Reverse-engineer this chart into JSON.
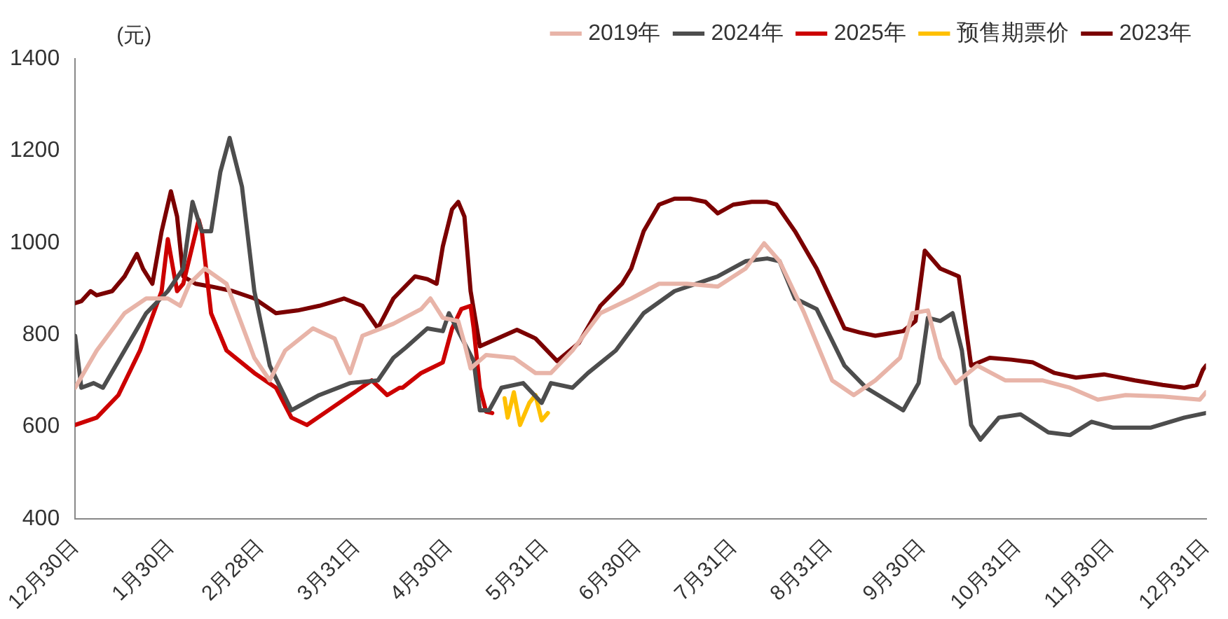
{
  "chart_data": {
    "type": "line",
    "ylabel": "(元)",
    "xlim": [
      "2024-12-30",
      "2025-12-31"
    ],
    "ylim": [
      400,
      1400
    ],
    "yticks": [
      400,
      600,
      800,
      1000,
      1200,
      1400
    ],
    "xticks": [
      {
        "value": "2024-12-30",
        "label": "12月30日"
      },
      {
        "value": "2025-01-30",
        "label": "1月30日"
      },
      {
        "value": "2025-02-28",
        "label": "2月28日"
      },
      {
        "value": "2025-03-31",
        "label": "3月31日"
      },
      {
        "value": "2025-04-30",
        "label": "4月30日"
      },
      {
        "value": "2025-05-31",
        "label": "5月31日"
      },
      {
        "value": "2025-06-30",
        "label": "6月30日"
      },
      {
        "value": "2025-07-31",
        "label": "7月31日"
      },
      {
        "value": "2025-08-31",
        "label": "8月31日"
      },
      {
        "value": "2025-09-30",
        "label": "9月30日"
      },
      {
        "value": "2025-10-31",
        "label": "10月31日"
      },
      {
        "value": "2025-11-30",
        "label": "11月30日"
      },
      {
        "value": "2025-12-31",
        "label": "12月31日"
      }
    ],
    "grid": false,
    "legend": "top",
    "marker": "none",
    "line_style": "solid",
    "series": [
      {
        "name": "2019年",
        "color": "#e8b4a8",
        "x": [
          "2024-12-30",
          "2025-01-06",
          "2025-01-15",
          "2025-01-22",
          "2025-01-29",
          "2025-02-02",
          "2025-02-05",
          "2025-02-10",
          "2025-02-17",
          "2025-02-26",
          "2025-03-03",
          "2025-03-08",
          "2025-03-17",
          "2025-03-24",
          "2025-03-29",
          "2025-04-02",
          "2025-04-12",
          "2025-04-21",
          "2025-04-24",
          "2025-04-28",
          "2025-05-03",
          "2025-05-05",
          "2025-05-07",
          "2025-05-12",
          "2025-05-21",
          "2025-05-28",
          "2025-06-02",
          "2025-06-09",
          "2025-06-18",
          "2025-06-28",
          "2025-07-07",
          "2025-07-16",
          "2025-07-26",
          "2025-08-04",
          "2025-08-10",
          "2025-08-15",
          "2025-08-23",
          "2025-09-01",
          "2025-09-08",
          "2025-09-15",
          "2025-09-23",
          "2025-09-27",
          "2025-10-02",
          "2025-10-06",
          "2025-10-11",
          "2025-10-18",
          "2025-10-27",
          "2025-11-08",
          "2025-11-17",
          "2025-11-26",
          "2025-12-05",
          "2025-12-17",
          "2025-12-29",
          "2025-12-31"
        ],
        "values": [
          685,
          766,
          847,
          879,
          879,
          863,
          911,
          944,
          911,
          750,
          701,
          766,
          814,
          792,
          717,
          798,
          824,
          856,
          879,
          837,
          830,
          782,
          727,
          756,
          750,
          717,
          717,
          766,
          847,
          879,
          911,
          911,
          905,
          944,
          999,
          960,
          847,
          701,
          669,
          701,
          750,
          847,
          853,
          750,
          695,
          733,
          701,
          701,
          685,
          659,
          669,
          666,
          659,
          675
        ]
      },
      {
        "name": "2024年",
        "color": "#4d4d4d",
        "x": [
          "2024-12-30",
          "2025-01-01",
          "2025-01-05",
          "2025-01-08",
          "2025-01-15",
          "2025-01-22",
          "2025-01-29",
          "2025-02-03",
          "2025-02-06",
          "2025-02-09",
          "2025-02-12",
          "2025-02-15",
          "2025-02-18",
          "2025-02-22",
          "2025-02-26",
          "2025-03-03",
          "2025-03-10",
          "2025-03-19",
          "2025-03-29",
          "2025-04-07",
          "2025-04-12",
          "2025-04-16",
          "2025-04-23",
          "2025-04-28",
          "2025-04-30",
          "2025-05-08",
          "2025-05-10",
          "2025-05-13",
          "2025-05-17",
          "2025-05-24",
          "2025-05-30",
          "2025-06-02",
          "2025-06-09",
          "2025-06-14",
          "2025-06-23",
          "2025-07-02",
          "2025-07-12",
          "2025-07-19",
          "2025-07-26",
          "2025-08-04",
          "2025-08-11",
          "2025-08-15",
          "2025-08-20",
          "2025-08-27",
          "2025-09-05",
          "2025-09-12",
          "2025-09-24",
          "2025-09-29",
          "2025-10-02",
          "2025-10-06",
          "2025-10-10",
          "2025-10-13",
          "2025-10-16",
          "2025-10-19",
          "2025-10-25",
          "2025-11-01",
          "2025-11-10",
          "2025-11-17",
          "2025-11-24",
          "2025-12-01",
          "2025-12-13",
          "2025-12-24",
          "2025-12-31"
        ],
        "values": [
          798,
          685,
          695,
          685,
          766,
          847,
          895,
          944,
          1089,
          1025,
          1025,
          1154,
          1228,
          1122,
          895,
          733,
          636,
          669,
          695,
          701,
          750,
          772,
          814,
          808,
          847,
          743,
          636,
          636,
          685,
          695,
          652,
          695,
          685,
          717,
          766,
          847,
          895,
          911,
          927,
          960,
          966,
          960,
          879,
          856,
          733,
          685,
          636,
          695,
          837,
          830,
          847,
          766,
          604,
          572,
          620,
          627,
          588,
          582,
          611,
          598,
          598,
          620,
          630
        ]
      },
      {
        "name": "2025年",
        "color": "#cc0000",
        "x": [
          "2024-12-30",
          "2025-01-06",
          "2025-01-13",
          "2025-01-20",
          "2025-01-27",
          "2025-01-29",
          "2025-02-01",
          "2025-02-03",
          "2025-02-08",
          "2025-02-09",
          "2025-02-12",
          "2025-02-17",
          "2025-02-26",
          "2025-03-05",
          "2025-03-10",
          "2025-03-15",
          "2025-03-22",
          "2025-04-05",
          "2025-04-10",
          "2025-04-14",
          "2025-04-15",
          "2025-04-21",
          "2025-04-28",
          "2025-05-01",
          "2025-05-04",
          "2025-05-07",
          "2025-05-08",
          "2025-05-10",
          "2025-05-12",
          "2025-05-14"
        ],
        "values": [
          604,
          620,
          669,
          766,
          895,
          1008,
          895,
          911,
          1050,
          1025,
          847,
          766,
          717,
          685,
          620,
          604,
          636,
          701,
          669,
          685,
          685,
          717,
          740,
          814,
          856,
          863,
          814,
          685,
          633,
          630
        ]
      },
      {
        "name": "预售期票价",
        "color": "#ffc000",
        "x": [
          "2025-05-18",
          "2025-05-19",
          "2025-05-21",
          "2025-05-23",
          "2025-05-26",
          "2025-05-28",
          "2025-05-30",
          "2025-06-01"
        ],
        "values": [
          662,
          620,
          675,
          604,
          652,
          669,
          614,
          630
        ]
      },
      {
        "name": "2023年",
        "color": "#7b0000",
        "x": [
          "2024-12-30",
          "2025-01-01",
          "2025-01-04",
          "2025-01-06",
          "2025-01-11",
          "2025-01-15",
          "2025-01-19",
          "2025-01-21",
          "2025-01-24",
          "2025-01-27",
          "2025-01-30",
          "2025-02-01",
          "2025-02-03",
          "2025-02-07",
          "2025-02-12",
          "2025-02-19",
          "2025-02-26",
          "2025-03-05",
          "2025-03-12",
          "2025-03-19",
          "2025-03-27",
          "2025-04-02",
          "2025-04-07",
          "2025-04-12",
          "2025-04-19",
          "2025-04-23",
          "2025-04-26",
          "2025-04-28",
          "2025-05-01",
          "2025-05-03",
          "2025-05-05",
          "2025-05-07",
          "2025-05-10",
          "2025-05-22",
          "2025-05-28",
          "2025-06-04",
          "2025-06-11",
          "2025-06-18",
          "2025-06-25",
          "2025-06-28",
          "2025-07-02",
          "2025-07-07",
          "2025-07-12",
          "2025-07-17",
          "2025-07-22",
          "2025-07-26",
          "2025-07-31",
          "2025-08-06",
          "2025-08-11",
          "2025-08-14",
          "2025-08-20",
          "2025-08-27",
          "2025-09-05",
          "2025-09-10",
          "2025-09-15",
          "2025-09-24",
          "2025-09-28",
          "2025-10-01",
          "2025-10-06",
          "2025-10-12",
          "2025-10-16",
          "2025-10-22",
          "2025-10-29",
          "2025-11-05",
          "2025-11-12",
          "2025-11-19",
          "2025-11-28",
          "2025-12-08",
          "2025-12-17",
          "2025-12-24",
          "2025-12-28",
          "2025-12-30",
          "2025-12-31"
        ],
        "values": [
          869,
          873,
          895,
          886,
          895,
          927,
          976,
          943,
          911,
          1025,
          1112,
          1057,
          927,
          911,
          905,
          895,
          879,
          847,
          853,
          863,
          879,
          863,
          814,
          879,
          927,
          921,
          911,
          992,
          1073,
          1089,
          1057,
          895,
          775,
          811,
          792,
          743,
          782,
          863,
          911,
          944,
          1025,
          1083,
          1096,
          1096,
          1089,
          1064,
          1083,
          1089,
          1089,
          1083,
          1025,
          944,
          814,
          805,
          798,
          808,
          830,
          983,
          944,
          927,
          733,
          750,
          746,
          740,
          717,
          707,
          714,
          701,
          691,
          685,
          691,
          724,
          733
        ]
      }
    ]
  }
}
